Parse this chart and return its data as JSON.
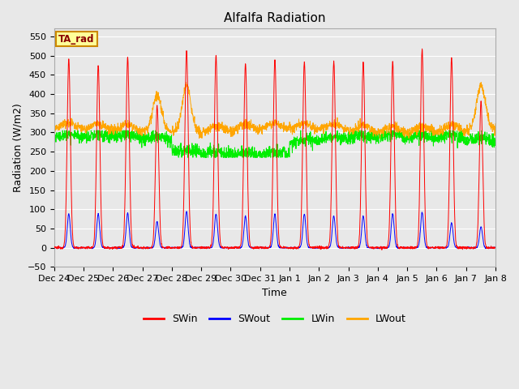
{
  "title": "Alfalfa Radiation",
  "xlabel": "Time",
  "ylabel": "Radiation (W/m2)",
  "ylim": [
    -50,
    570
  ],
  "yticks": [
    -50,
    0,
    50,
    100,
    150,
    200,
    250,
    300,
    350,
    400,
    450,
    500,
    550
  ],
  "bg_color": "#e8e8e8",
  "plot_bg_color": "#e8e8e8",
  "grid_color": "#ffffff",
  "title_fontsize": 11,
  "label_fontsize": 9,
  "tick_labels": [
    "Dec 24",
    "Dec 25",
    "Dec 26",
    "Dec 27",
    "Dec 28",
    "Dec 29",
    "Dec 30",
    "Dec 31",
    "Jan 1",
    "Jan 2",
    "Jan 3",
    "Jan 4",
    "Jan 5",
    "Jan 6",
    "Jan 7",
    "Jan 8"
  ],
  "colors": {
    "SWin": "#ff0000",
    "SWout": "#0000ff",
    "LWin": "#00ee00",
    "LWout": "#ffa500"
  },
  "annotation_text": "TA_rad",
  "annotation_box_color": "#ffff99",
  "annotation_box_edge": "#cc8800",
  "n_days": 15,
  "points_per_day": 144,
  "peak_SWin": [
    490,
    475,
    495,
    370,
    515,
    500,
    480,
    490,
    485,
    485,
    485,
    485,
    515,
    495,
    380
  ],
  "peak_SWout": [
    88,
    88,
    90,
    68,
    95,
    88,
    83,
    88,
    88,
    83,
    83,
    88,
    92,
    65,
    55
  ]
}
